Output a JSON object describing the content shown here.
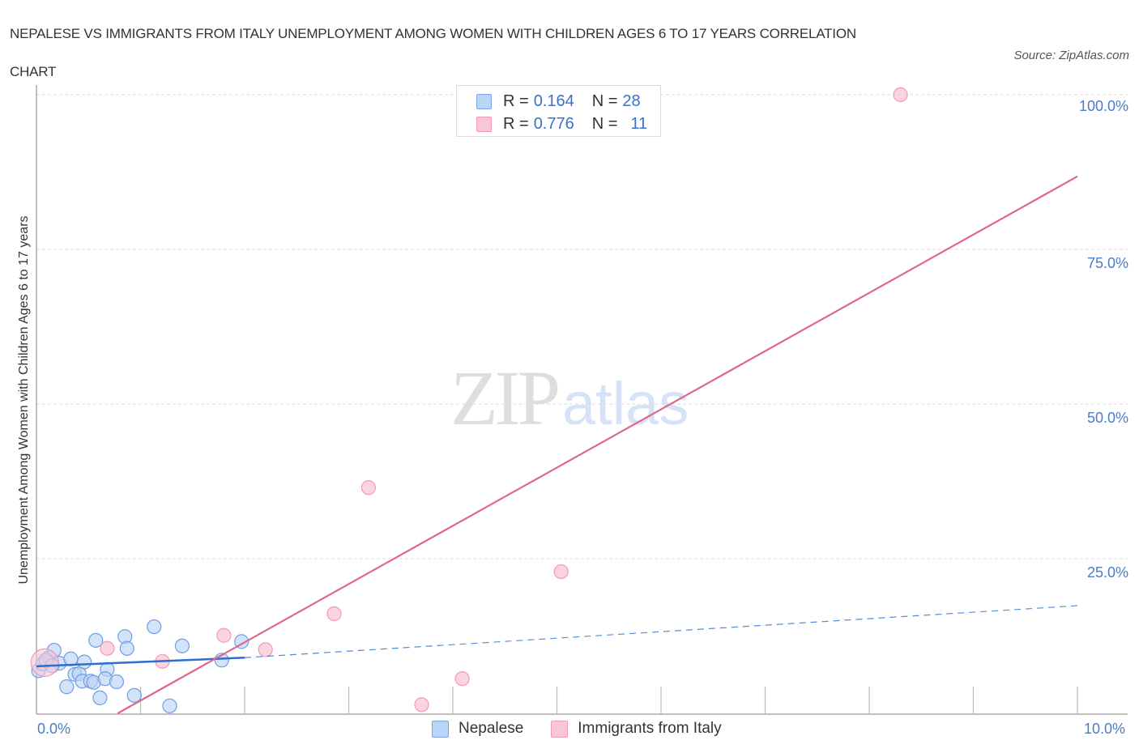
{
  "title": {
    "line1": "NEPALESE VS IMMIGRANTS FROM ITALY UNEMPLOYMENT AMONG WOMEN WITH CHILDREN AGES 6 TO 17 YEARS CORRELATION",
    "line2": "CHART"
  },
  "source": "Source: ZipAtlas.com",
  "watermark": {
    "zip": "ZIP",
    "atlas": "atlas"
  },
  "legend": {
    "rows": [
      {
        "r_label": "R =",
        "r_value": "0.164",
        "n_label": "N =",
        "n_value": "28",
        "color": "#bcd4f6"
      },
      {
        "r_label": "R =",
        "r_value": "0.776",
        "n_label": "N =",
        "n_value": "11",
        "color": "#f8c7d6"
      }
    ]
  },
  "bottom_legend": {
    "items": [
      {
        "label": "Nepalese",
        "color": "#bcd4f6"
      },
      {
        "label": "Immigrants from Italy",
        "color": "#f8c7d6"
      }
    ]
  },
  "axes": {
    "ylabel": "Unemployment Among Women with Children Ages 6 to 17 years",
    "y_ticks": [
      "100.0%",
      "75.0%",
      "50.0%",
      "25.0%"
    ],
    "x_ticks": [
      "0.0%",
      "10.0%"
    ]
  },
  "colors": {
    "blue_fill": "#bcd4f6",
    "blue_stroke": "#6f9fe3",
    "blue_line": "#2b6fd0",
    "pink_fill": "#f8c7d6",
    "pink_stroke": "#ee9ab5",
    "pink_line": "#e06690",
    "tick_text": "#4a7cc9"
  },
  "chart_data": {
    "type": "scatter",
    "title": "NEPALESE VS IMMIGRANTS FROM ITALY UNEMPLOYMENT AMONG WOMEN WITH CHILDREN AGES 6 TO 17 YEARS CORRELATION CHART",
    "xlabel": "",
    "ylabel": "Unemployment Among Women with Children Ages 6 to 17 years",
    "xlim": [
      0,
      10
    ],
    "ylim": [
      0,
      100
    ],
    "x_unit": "%",
    "y_unit": "%",
    "x_tick_labels": [
      "0.0%",
      "10.0%"
    ],
    "y_tick_labels": [
      "25.0%",
      "50.0%",
      "75.0%",
      "100.0%"
    ],
    "grid": "horizontal dashed at 25, 50, 75, 100",
    "legend_position": "top-center and bottom",
    "series": [
      {
        "name": "Nepalese",
        "R": 0.164,
        "N": 28,
        "color": "#bcd4f6",
        "points": [
          [
            0.02,
            6.9
          ],
          [
            0.06,
            8.0
          ],
          [
            0.12,
            9.0
          ],
          [
            0.17,
            10.2
          ],
          [
            0.22,
            8.1
          ],
          [
            0.29,
            4.3
          ],
          [
            0.33,
            8.8
          ],
          [
            0.37,
            6.3
          ],
          [
            0.41,
            6.4
          ],
          [
            0.46,
            8.3
          ],
          [
            0.44,
            5.2
          ],
          [
            0.52,
            5.2
          ],
          [
            0.55,
            5.0
          ],
          [
            0.57,
            11.8
          ],
          [
            0.61,
            2.5
          ],
          [
            0.68,
            7.1
          ],
          [
            0.66,
            5.6
          ],
          [
            0.77,
            5.1
          ],
          [
            0.85,
            12.4
          ],
          [
            0.87,
            10.5
          ],
          [
            0.94,
            2.9
          ],
          [
            1.13,
            14.0
          ],
          [
            1.28,
            1.2
          ],
          [
            1.4,
            10.9
          ],
          [
            1.78,
            8.6
          ],
          [
            1.97,
            11.6
          ],
          [
            0.09,
            8.6
          ],
          [
            0.15,
            7.7
          ]
        ],
        "trendline": {
          "x": [
            0.0,
            2.0,
            10.0
          ],
          "y": [
            7.6,
            9.0,
            17.4
          ],
          "style": "solid to 2.0, dashed beyond"
        }
      },
      {
        "name": "Immigrants from Italy",
        "R": 0.776,
        "N": 11,
        "color": "#f8c7d6",
        "points": [
          [
            0.08,
            8.2
          ],
          [
            0.68,
            10.5
          ],
          [
            1.21,
            8.4
          ],
          [
            1.8,
            12.6
          ],
          [
            2.2,
            10.3
          ],
          [
            2.86,
            16.1
          ],
          [
            3.19,
            36.5
          ],
          [
            3.7,
            1.4
          ],
          [
            4.09,
            5.6
          ],
          [
            5.04,
            22.9
          ],
          [
            8.3,
            100.0
          ]
        ],
        "trendline": {
          "x": [
            0.78,
            10.0
          ],
          "y": [
            0.0,
            86.8
          ],
          "style": "solid"
        }
      }
    ]
  }
}
